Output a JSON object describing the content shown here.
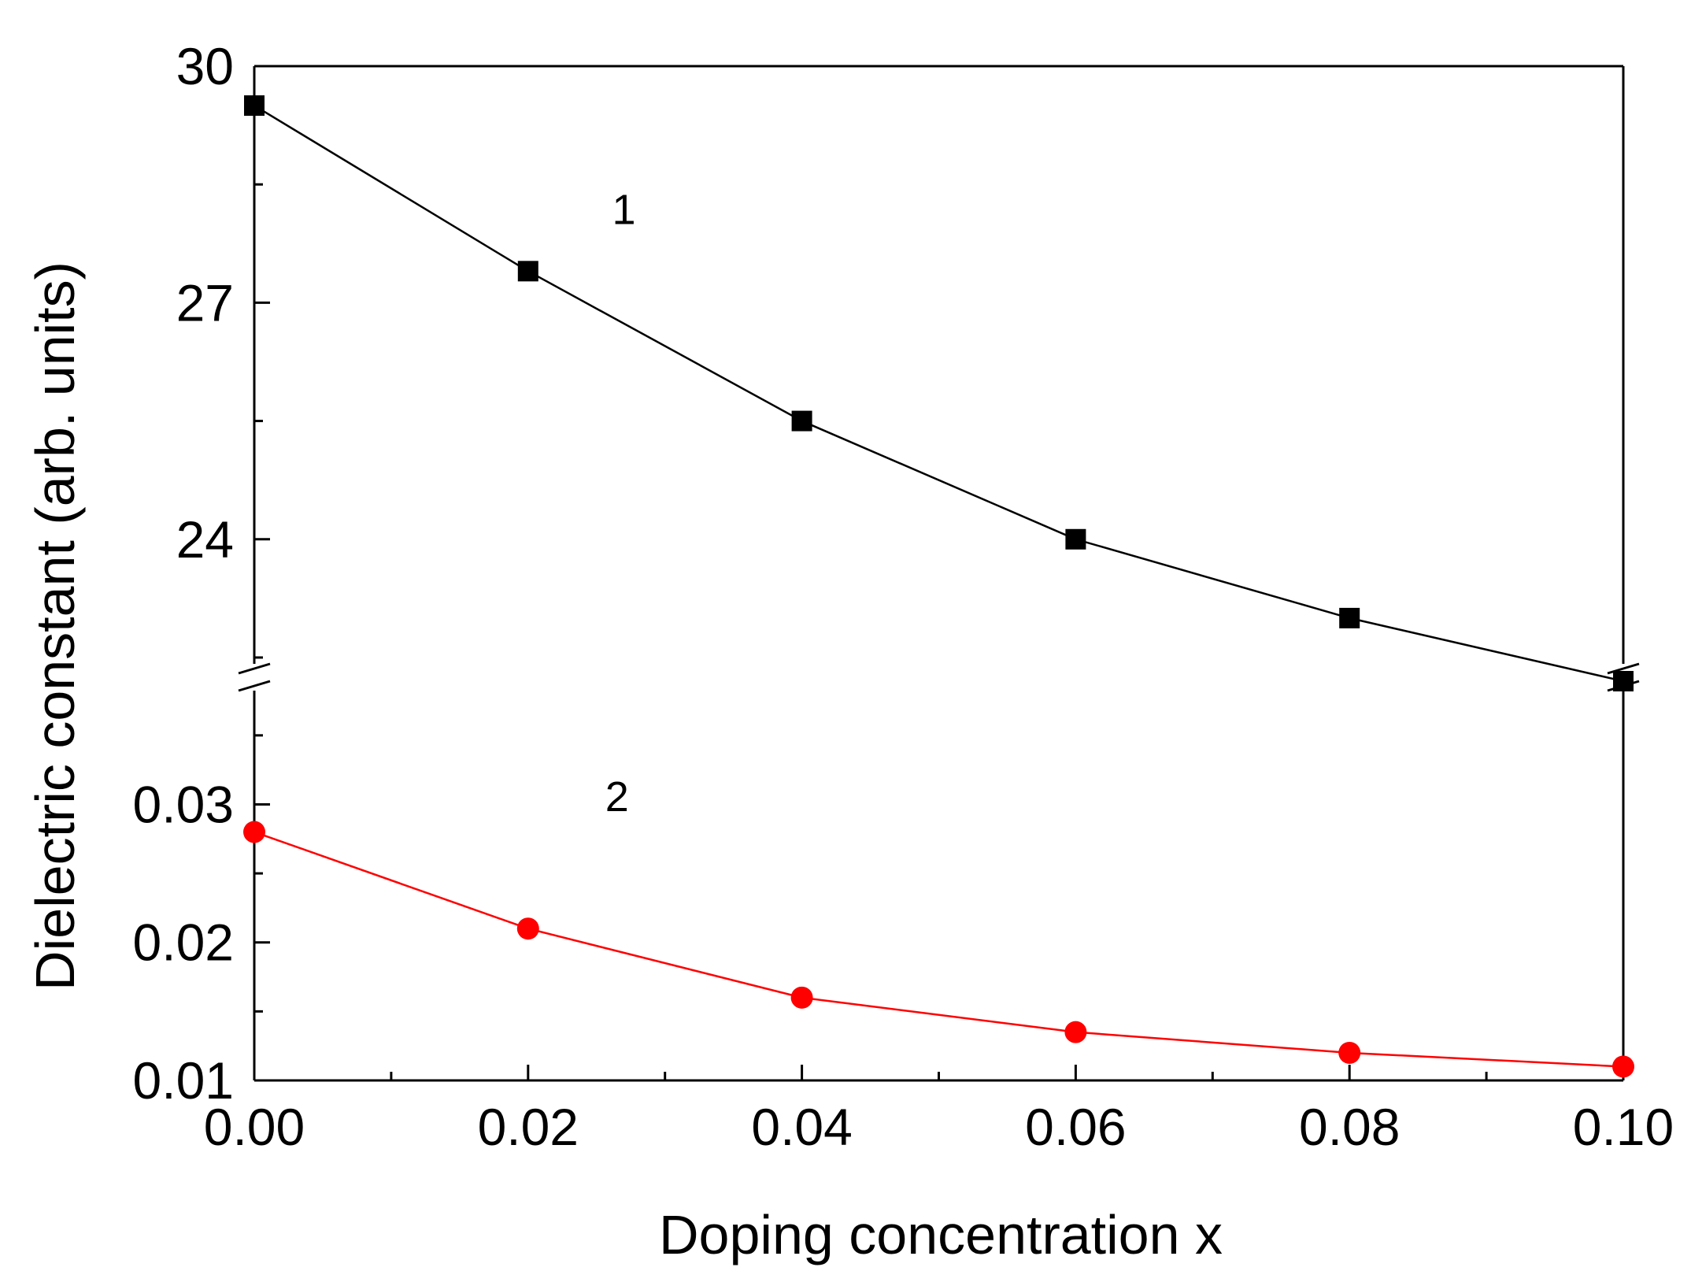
{
  "chart_data": {
    "type": "line",
    "title": "",
    "xlabel": "Doping concentration x",
    "ylabel": "Dielectric constant (arb. units)",
    "x_ticks": [
      "0.00",
      "0.02",
      "0.04",
      "0.06",
      "0.08",
      "0.10"
    ],
    "xlim": [
      0.0,
      0.1
    ],
    "y_axis_break": true,
    "panels": [
      {
        "name": "upper",
        "ylim": [
          22.2,
          30
        ],
        "y_ticks": [
          "30",
          "27",
          "24"
        ]
      },
      {
        "name": "lower",
        "ylim": [
          0.01,
          0.0375
        ],
        "y_ticks": [
          "0.03",
          "0.02",
          "0.01"
        ]
      }
    ],
    "x": [
      0.0,
      0.02,
      0.04,
      0.06,
      0.08,
      0.1
    ],
    "series": [
      {
        "label": "1",
        "panel": "upper",
        "marker": "square",
        "color": "#000000",
        "values": [
          29.5,
          27.4,
          25.5,
          24.0,
          23.0,
          22.2
        ]
      },
      {
        "label": "2",
        "panel": "lower",
        "marker": "circle",
        "color": "#ff0000",
        "values": [
          0.028,
          0.021,
          0.016,
          0.0135,
          0.012,
          0.011
        ]
      }
    ],
    "grid": false,
    "legend": "none"
  }
}
